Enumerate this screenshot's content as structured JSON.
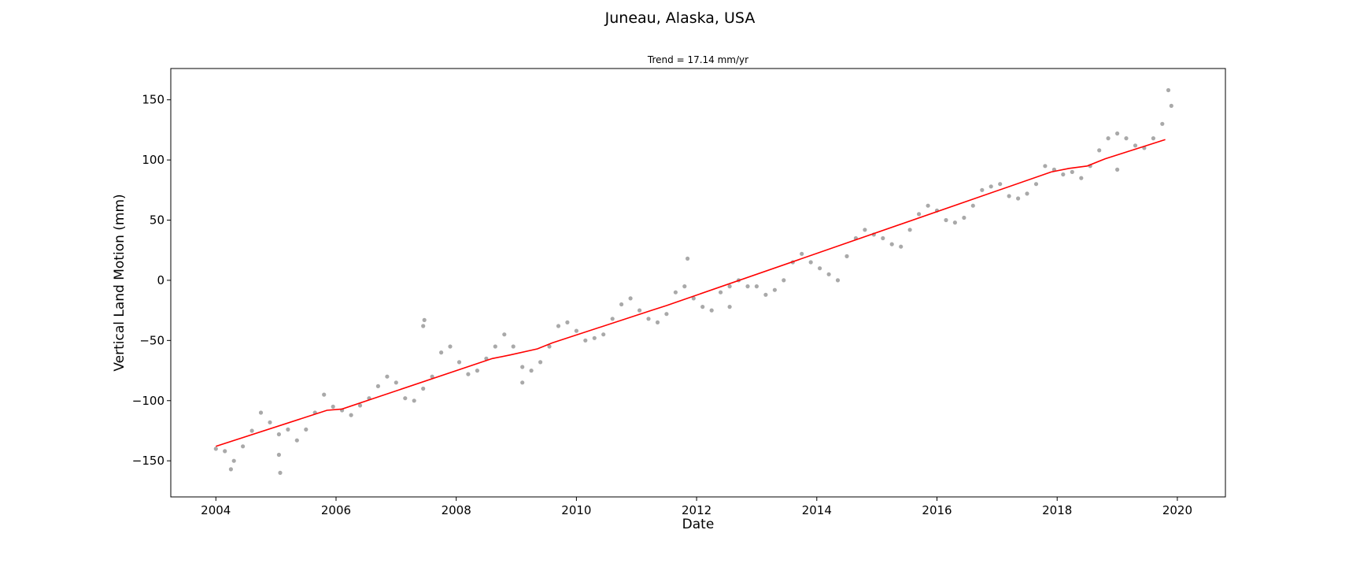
{
  "chart_data": {
    "type": "scatter",
    "title": "Juneau, Alaska, USA",
    "subtitle": "Trend = 17.14 mm/yr",
    "xlabel": "Date",
    "ylabel": "Vertical Land Motion (mm)",
    "xlim": [
      2003.25,
      2020.8
    ],
    "ylim": [
      -180,
      176
    ],
    "x_ticks": [
      2004,
      2006,
      2008,
      2010,
      2012,
      2014,
      2016,
      2018,
      2020
    ],
    "x_tick_labels": [
      "2004",
      "2006",
      "2008",
      "2010",
      "2012",
      "2014",
      "2016",
      "2018",
      "2020"
    ],
    "y_ticks": [
      -150,
      -100,
      -50,
      0,
      50,
      100,
      150
    ],
    "y_tick_labels": [
      "−150",
      "−100",
      "−50",
      "0",
      "50",
      "100",
      "150"
    ],
    "grid": false,
    "legend": "none",
    "colors": {
      "points": "#a9a9a9",
      "trend": "#ff0000",
      "axes": "#000000"
    },
    "series": [
      {
        "kind": "points",
        "x": [
          2004.0,
          2004.15,
          2004.3,
          2004.45,
          2004.6,
          2004.75,
          2004.9,
          2005.05,
          2005.2,
          2005.35,
          2005.5,
          2005.65,
          2005.8,
          2005.95,
          2006.1,
          2006.25,
          2006.4,
          2006.55,
          2006.7,
          2006.85,
          2007.0,
          2007.15,
          2007.3,
          2007.45,
          2007.6,
          2007.75,
          2007.9,
          2008.05,
          2008.2,
          2008.35,
          2008.5,
          2008.65,
          2008.8,
          2008.95,
          2009.1,
          2009.25,
          2009.4,
          2009.55,
          2009.7,
          2009.85,
          2010.0,
          2010.15,
          2010.3,
          2010.45,
          2010.6,
          2010.75,
          2010.9,
          2011.05,
          2011.2,
          2011.35,
          2011.5,
          2011.65,
          2011.8,
          2011.95,
          2012.1,
          2012.25,
          2012.4,
          2012.55,
          2012.7,
          2012.85,
          2013.0,
          2013.15,
          2013.3,
          2013.45,
          2013.6,
          2013.75,
          2013.9,
          2014.05,
          2014.2,
          2014.35,
          2014.5,
          2014.65,
          2014.8,
          2014.95,
          2015.1,
          2015.25,
          2015.4,
          2015.55,
          2015.7,
          2015.85,
          2016.0,
          2016.15,
          2016.3,
          2016.45,
          2016.6,
          2016.75,
          2016.9,
          2017.05,
          2017.2,
          2017.35,
          2017.5,
          2017.65,
          2017.8,
          2017.95,
          2018.1,
          2018.25,
          2018.4,
          2018.55,
          2018.7,
          2018.85,
          2019.0,
          2019.15,
          2019.3,
          2019.45,
          2019.6,
          2019.75,
          2019.9,
          2004.25,
          2005.05,
          2005.07,
          2007.45,
          2007.47,
          2009.1,
          2011.85,
          2012.55,
          2019.0,
          2019.85
        ],
        "y": [
          -140,
          -142,
          -150,
          -138,
          -125,
          -110,
          -118,
          -128,
          -124,
          -133,
          -124,
          -110,
          -95,
          -105,
          -108,
          -112,
          -104,
          -98,
          -88,
          -80,
          -85,
          -98,
          -100,
          -90,
          -80,
          -60,
          -55,
          -68,
          -78,
          -75,
          -65,
          -55,
          -45,
          -55,
          -72,
          -75,
          -68,
          -55,
          -38,
          -35,
          -42,
          -50,
          -48,
          -45,
          -32,
          -20,
          -15,
          -25,
          -32,
          -35,
          -28,
          -10,
          -5,
          -15,
          -22,
          -25,
          -10,
          -5,
          0,
          -5,
          -5,
          -12,
          -8,
          0,
          15,
          22,
          15,
          10,
          5,
          0,
          20,
          35,
          42,
          38,
          35,
          30,
          28,
          42,
          55,
          62,
          58,
          50,
          48,
          52,
          62,
          75,
          78,
          80,
          70,
          68,
          72,
          80,
          95,
          92,
          88,
          90,
          85,
          95,
          108,
          118,
          122,
          118,
          112,
          110,
          118,
          130,
          145,
          -157,
          -145,
          -160,
          -38,
          -33,
          -85,
          18,
          -22,
          92,
          158
        ]
      },
      {
        "kind": "trend-line",
        "x": [
          2004.0,
          2005.85,
          2006.1,
          2008.6,
          2008.9,
          2009.35,
          2009.6,
          2011.25,
          2011.5,
          2017.9,
          2018.2,
          2018.5,
          2018.8,
          2019.8
        ],
        "y": [
          -138,
          -108,
          -107,
          -65,
          -62,
          -57,
          -52,
          -25,
          -21,
          90,
          93,
          95,
          101,
          117
        ]
      }
    ]
  }
}
